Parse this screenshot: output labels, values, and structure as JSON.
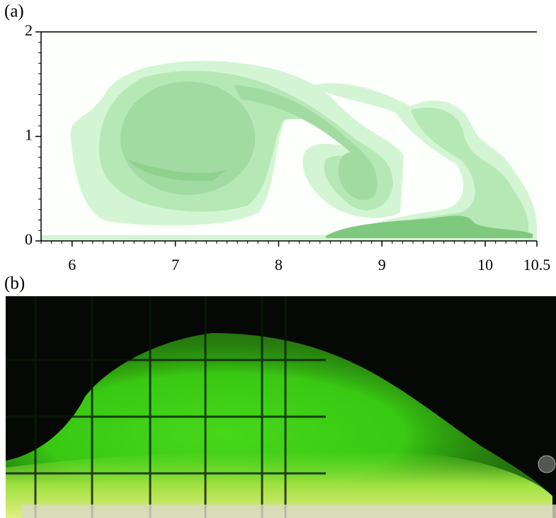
{
  "panel_a_label": "(a)",
  "chart_data": {
    "type": "contour",
    "xlim": [
      5.7,
      10.5
    ],
    "xticks": [
      6,
      7,
      8,
      9,
      10,
      10.5
    ],
    "ylim": [
      0,
      2
    ],
    "yticks": [
      0,
      1,
      2
    ]
  },
  "panel_b_label": "(b)"
}
